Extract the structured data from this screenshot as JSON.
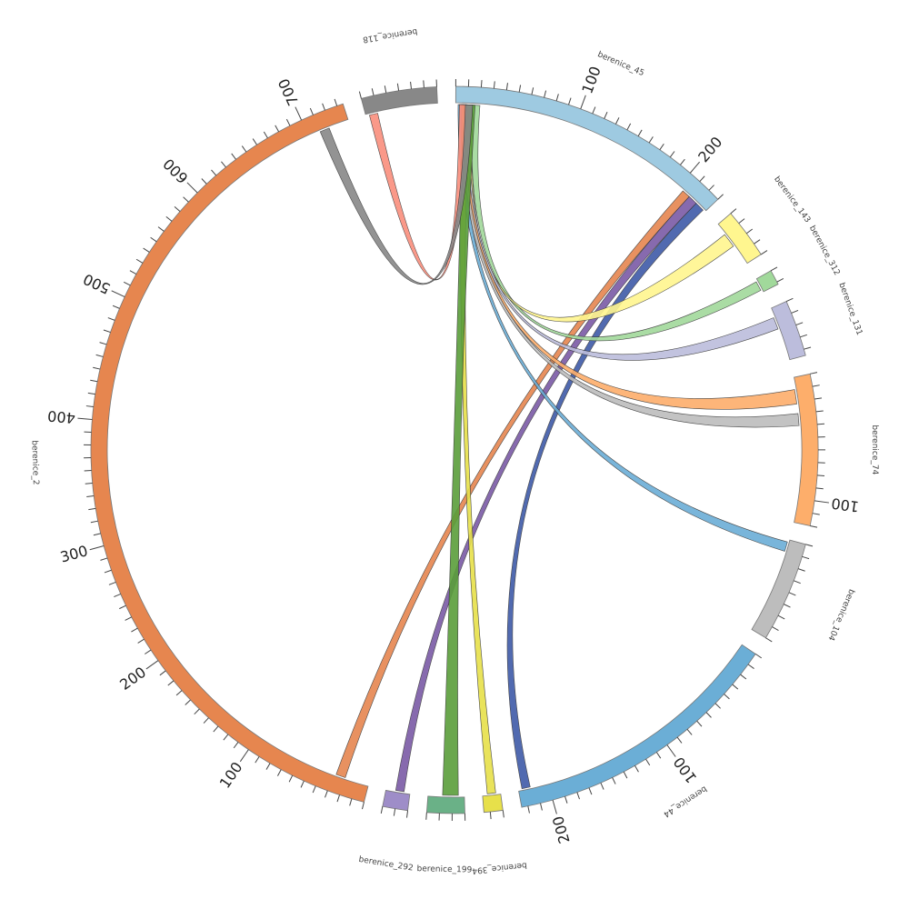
{
  "chart_data": {
    "type": "chord",
    "title": "",
    "segments": [
      {
        "id": "berenice_45",
        "label": "berenice_45",
        "length": 230,
        "color": "#9ecae1",
        "major_ticks": [
          100,
          200
        ]
      },
      {
        "id": "berenice_143",
        "label": "berenice_143",
        "length": 40,
        "color": "#fff68f",
        "major_ticks": []
      },
      {
        "id": "berenice_312",
        "label": "berenice_312",
        "length": 12,
        "color": "#a1d99b",
        "major_ticks": []
      },
      {
        "id": "berenice_131",
        "label": "berenice_131",
        "length": 45,
        "color": "#bcbddc",
        "major_ticks": []
      },
      {
        "id": "berenice_74",
        "label": "berenice_74",
        "length": 120,
        "color": "#fdae6b",
        "major_ticks": [
          100
        ]
      },
      {
        "id": "berenice_104",
        "label": "berenice_104",
        "length": 80,
        "color": "#bdbdbd",
        "major_ticks": []
      },
      {
        "id": "berenice_44",
        "label": "berenice_44",
        "length": 225,
        "color": "#6baed6",
        "major_ticks": [
          100,
          200
        ]
      },
      {
        "id": "berenice_394",
        "label": "berenice_394",
        "length": 15,
        "color": "#e7e04a",
        "major_ticks": []
      },
      {
        "id": "berenice_199",
        "label": "berenice_199",
        "length": 30,
        "color": "#6ab187",
        "major_ticks": []
      },
      {
        "id": "berenice_292",
        "label": "berenice_292",
        "length": 20,
        "color": "#9e8dc8",
        "major_ticks": []
      },
      {
        "id": "berenice_2",
        "label": "berenice_2",
        "length": 735,
        "color": "#e6864f",
        "major_ticks": [
          100,
          200,
          300,
          400,
          500,
          600,
          700
        ]
      },
      {
        "id": "berenice_118",
        "label": "berenice_118",
        "length": 60,
        "color": "#888888",
        "major_ticks": []
      }
    ],
    "tick_labels": [
      "100",
      "200",
      "100",
      "100",
      "200",
      "100",
      "200",
      "300",
      "400",
      "500",
      "600",
      "700"
    ],
    "links": [
      {
        "source": "berenice_45",
        "s_start": 220,
        "s_end": 228,
        "target": "berenice_44",
        "t_start": 215,
        "t_end": 222,
        "color": "#3f5aa8"
      },
      {
        "source": "berenice_45",
        "s_start": 212,
        "s_end": 220,
        "target": "berenice_292",
        "t_start": 5,
        "t_end": 12,
        "color": "#7b5aa6"
      },
      {
        "source": "berenice_45",
        "s_start": 205,
        "s_end": 212,
        "target": "berenice_2",
        "t_start": 20,
        "t_end": 28,
        "color": "#e6864f"
      },
      {
        "source": "berenice_45",
        "s_start": 14,
        "s_end": 20,
        "target": "berenice_312",
        "t_start": 2,
        "t_end": 10,
        "color": "#a1d99b"
      },
      {
        "source": "berenice_45",
        "s_start": 10,
        "s_end": 14,
        "target": "berenice_143",
        "t_start": 10,
        "t_end": 22,
        "color": "#fff68f"
      },
      {
        "source": "berenice_45",
        "s_start": 8,
        "s_end": 12,
        "target": "berenice_131",
        "t_start": 8,
        "t_end": 18,
        "color": "#bcbddc"
      },
      {
        "source": "berenice_45",
        "s_start": 6,
        "s_end": 10,
        "target": "berenice_74",
        "t_start": 10,
        "t_end": 22,
        "color": "#fdae6b"
      },
      {
        "source": "berenice_45",
        "s_start": 4,
        "s_end": 8,
        "target": "berenice_74",
        "t_start": 30,
        "t_end": 40,
        "color": "#bdbdbd"
      },
      {
        "source": "berenice_45",
        "s_start": 2,
        "s_end": 6,
        "target": "berenice_104",
        "t_start": 2,
        "t_end": 10,
        "color": "#6baed6"
      },
      {
        "source": "berenice_45",
        "s_start": 5,
        "s_end": 11,
        "target": "berenice_394",
        "t_start": 4,
        "t_end": 11,
        "color": "#e7e04a"
      },
      {
        "source": "berenice_45",
        "s_start": 6,
        "s_end": 16,
        "target": "berenice_199",
        "t_start": 5,
        "t_end": 18,
        "color": "#5a9e3a"
      },
      {
        "source": "berenice_45",
        "s_start": 3,
        "s_end": 9,
        "target": "berenice_118",
        "t_start": 3,
        "t_end": 10,
        "color": "#fa8e7d"
      },
      {
        "source": "berenice_45",
        "s_start": 8,
        "s_end": 14,
        "target": "berenice_2",
        "t_start": 710,
        "t_end": 718,
        "color": "#888888"
      }
    ]
  }
}
